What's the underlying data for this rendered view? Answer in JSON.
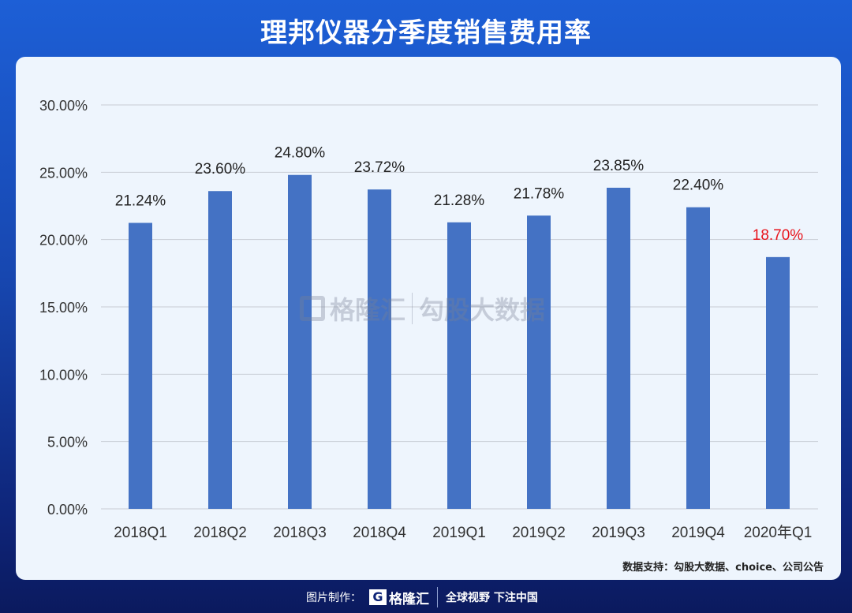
{
  "title": "理邦仪器分季度销售费用率",
  "watermark": {
    "brand": "格隆汇",
    "text": "勾股大数据"
  },
  "source": "数据支持：勾股大数据、choice、公司公告",
  "footer": {
    "label": "图片制作：",
    "brand": "格隆汇",
    "slogan": "全球视野 下注中国"
  },
  "colors": {
    "bar": "#4472c4",
    "highlight_label": "#e8141c",
    "label": "#222222"
  },
  "chart_data": {
    "type": "bar",
    "title": "理邦仪器分季度销售费用率",
    "categories": [
      "2018Q1",
      "2018Q2",
      "2018Q3",
      "2018Q4",
      "2019Q1",
      "2019Q2",
      "2019Q3",
      "2019Q4",
      "2020年Q1"
    ],
    "values": [
      21.24,
      23.6,
      24.8,
      23.72,
      21.28,
      21.78,
      23.85,
      22.4,
      18.7
    ],
    "data_labels": [
      "21.24%",
      "23.60%",
      "24.80%",
      "23.72%",
      "21.28%",
      "21.78%",
      "23.85%",
      "22.40%",
      "18.70%"
    ],
    "highlight_index": 8,
    "yticks": [
      "0.00%",
      "5.00%",
      "10.00%",
      "15.00%",
      "20.00%",
      "25.00%",
      "30.00%"
    ],
    "ylim": [
      0,
      30
    ],
    "grid": true,
    "xlabel": "",
    "ylabel": ""
  }
}
